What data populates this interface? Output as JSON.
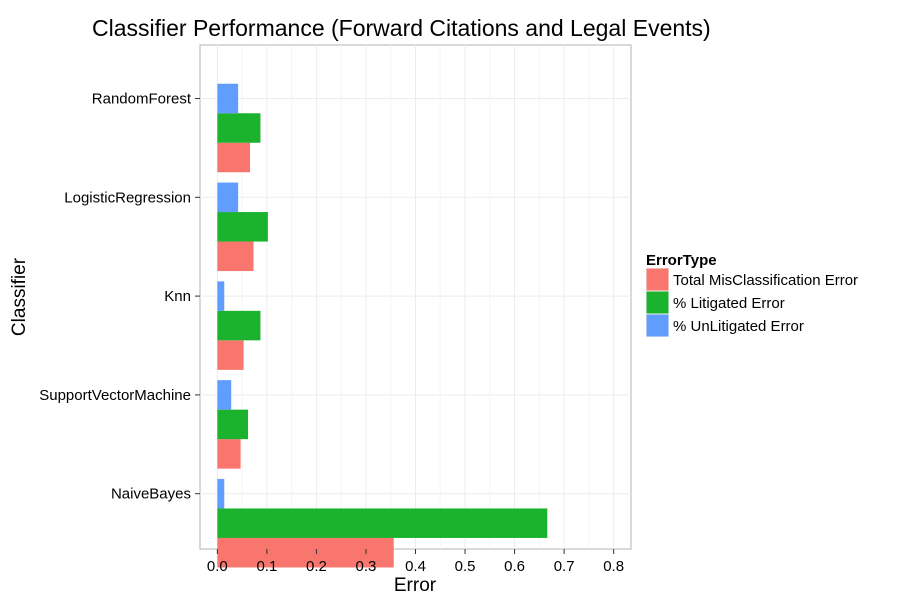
{
  "chart_data": {
    "type": "bar",
    "orientation": "horizontal",
    "title": "Classifier Performance (Forward Citations and Legal Events)",
    "xlabel": "Error",
    "ylabel": "Classifier",
    "categories": [
      "RandomForest",
      "LogisticRegression",
      "Knn",
      "SupportVectorMachine",
      "NaiveBayes"
    ],
    "series": [
      {
        "name": "Total MisClassification Error",
        "color": "#F8766D",
        "values": [
          0.066,
          0.073,
          0.053,
          0.047,
          0.356
        ]
      },
      {
        "name": "% Litigated Error",
        "color": "#1BB22E",
        "values": [
          0.087,
          0.102,
          0.087,
          0.062,
          0.666
        ]
      },
      {
        "name": "% UnLitigated Error",
        "color": "#619CFF",
        "values": [
          0.042,
          0.042,
          0.014,
          0.028,
          0.014
        ]
      }
    ],
    "xlim": [
      -0.035,
      0.835
    ],
    "xticks": [
      0.0,
      0.1,
      0.2,
      0.3,
      0.4,
      0.5,
      0.6,
      0.7,
      0.8
    ],
    "xtick_labels": [
      "0.0",
      "0.1",
      "0.2",
      "0.3",
      "0.4",
      "0.5",
      "0.6",
      "0.7",
      "0.8"
    ],
    "grid": true,
    "legend": {
      "title": "ErrorType",
      "position": "right"
    }
  }
}
